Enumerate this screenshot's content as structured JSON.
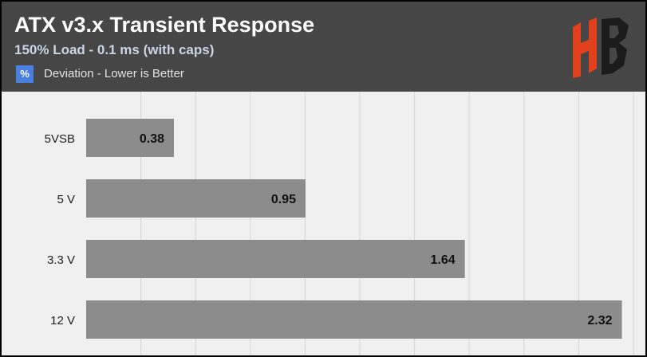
{
  "header": {
    "title": "ATX v3.x Transient Response",
    "subtitle": "150% Load - 0.1 ms (with caps)",
    "legend_icon": "%",
    "legend_label": "Deviation - Lower is Better",
    "logo_text": "HB"
  },
  "colors": {
    "header_bg": "#464646",
    "plot_bg": "#f0f0f0",
    "bar": "#8c8c8c",
    "grid": "#d6d6d6",
    "accent": "#4a7fe0",
    "logo_red": "#e0401c",
    "logo_dark": "#1b1b1b"
  },
  "chart_data": {
    "type": "bar",
    "orientation": "horizontal",
    "categories": [
      "5VSB",
      "5 V",
      "3.3 V",
      "12 V"
    ],
    "values": [
      0.38,
      0.95,
      1.64,
      2.32
    ],
    "value_labels": [
      "0.38",
      "0.95",
      "1.64",
      "2.32"
    ],
    "title": "ATX v3.x Transient Response",
    "subtitle": "150% Load - 0.1 ms (with caps)",
    "xlim": [
      0,
      2.37
    ],
    "grid": true,
    "legend": [
      {
        "name": "Deviation - Lower is Better",
        "icon": "%"
      }
    ]
  }
}
